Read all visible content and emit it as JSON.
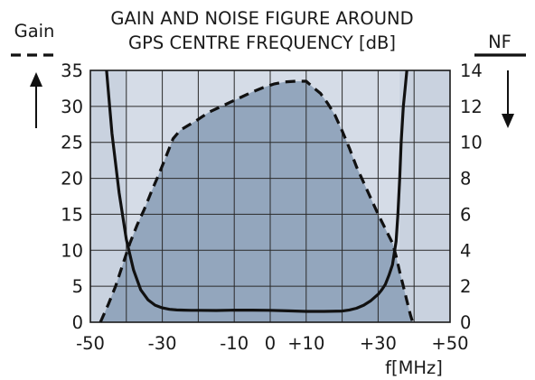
{
  "chart_data": {
    "type": "line",
    "title": "GAIN AND NOISE FIGURE AROUND",
    "subtitle": "GPS CENTRE FREQUENCY [dB]",
    "xlabel": "f[MHz]",
    "xlim": [
      -50,
      50
    ],
    "x_tick_labels": [
      {
        "x": -50,
        "label": "-50"
      },
      {
        "x": -30,
        "label": "-30"
      },
      {
        "x": -10,
        "label": "-10"
      },
      {
        "x": 0,
        "label": "0"
      },
      {
        "x": 10,
        "label": "+10"
      },
      {
        "x": 30,
        "label": "+30"
      },
      {
        "x": 50,
        "label": "+50"
      }
    ],
    "x_gridlines": [
      -50,
      -40,
      -30,
      -20,
      -10,
      0,
      10,
      20,
      30,
      40,
      50
    ],
    "left_axis": {
      "label": "Gain",
      "ylim": [
        0,
        35
      ],
      "ticks": [
        0,
        5,
        10,
        15,
        20,
        25,
        30,
        35
      ]
    },
    "right_axis": {
      "label": "NF",
      "ylim": [
        0,
        14
      ],
      "ticks": [
        0,
        2,
        4,
        6,
        8,
        10,
        12,
        14
      ]
    },
    "passband_shading": [
      -40,
      36
    ],
    "grid": true,
    "series": [
      {
        "name": "Gain",
        "axis": "left",
        "style": "dashed",
        "filled": true,
        "x": [
          -47.2,
          -45,
          -43,
          -41,
          -39,
          -37,
          -35,
          -33,
          -31,
          -29,
          -27,
          -25,
          -23,
          -20,
          -17,
          -14,
          -11,
          -8,
          -5,
          -2,
          1,
          4,
          7,
          10,
          12,
          14,
          16,
          18,
          20,
          22,
          24,
          26,
          28,
          30,
          32,
          34,
          35,
          36,
          37,
          38,
          39,
          39.6
        ],
        "values": [
          0,
          2.5,
          5,
          8,
          11,
          13.5,
          15.7,
          18.2,
          20.5,
          23,
          25.5,
          26.7,
          27.3,
          28.2,
          29.2,
          29.9,
          30.6,
          31.3,
          32,
          32.6,
          33.1,
          33.4,
          33.5,
          33.5,
          32.6,
          31.8,
          30.4,
          28.8,
          26.6,
          24.2,
          21.6,
          19.4,
          17.2,
          15,
          13,
          11,
          9.2,
          7,
          5,
          3,
          1,
          0
        ]
      },
      {
        "name": "NF",
        "axis": "right",
        "style": "solid",
        "filled": false,
        "x": [
          -45.5,
          -44,
          -42,
          -40,
          -38,
          -36,
          -34,
          -32,
          -30,
          -28,
          -26,
          -24,
          -22,
          -20,
          -15,
          -10,
          -5,
          0,
          5,
          10,
          15,
          20,
          22,
          24,
          26,
          28,
          30,
          31,
          32,
          33,
          34,
          35,
          35.5,
          36,
          36.4,
          37,
          37.5,
          38
        ],
        "values": [
          14,
          10.5,
          7.2,
          4.6,
          2.9,
          1.8,
          1.25,
          0.95,
          0.8,
          0.72,
          0.68,
          0.67,
          0.66,
          0.66,
          0.65,
          0.67,
          0.67,
          0.66,
          0.63,
          0.6,
          0.6,
          0.62,
          0.68,
          0.78,
          0.95,
          1.2,
          1.55,
          1.8,
          2.1,
          2.6,
          3.2,
          4.5,
          6,
          8,
          10,
          12,
          13,
          14
        ]
      }
    ]
  }
}
